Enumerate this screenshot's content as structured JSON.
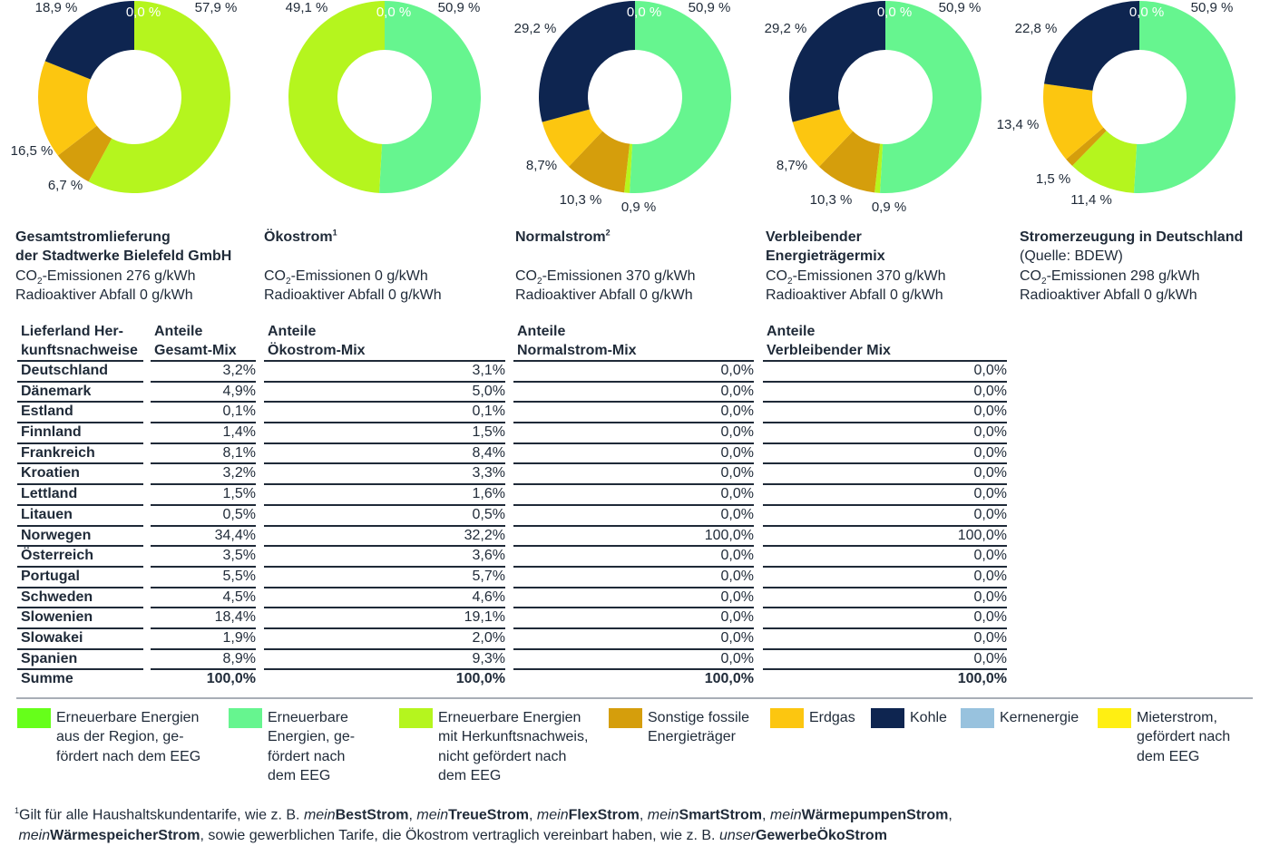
{
  "colors": {
    "ee_region": "#66ff1a",
    "ee_eeg": "#66f58f",
    "ee_hkn": "#b5f51e",
    "fossile": "#d59e0c",
    "erdgas": "#fcc610",
    "kohle": "#0e2550",
    "kernenergie": "#98c2de",
    "mieterstrom": "#ffef12"
  },
  "chart_data": [
    {
      "type": "pie",
      "slices": [
        {
          "name": "Erneuerbare Energien mit Herkunftsnachweis, nicht gefördert nach dem EEG",
          "value": 57.9,
          "label": "57,9 %",
          "color_key": "ee_hkn"
        },
        {
          "name": "Sonstige fossile Energieträger",
          "value": 6.7,
          "label": "6,7 %",
          "color_key": "fossile"
        },
        {
          "name": "Erdgas",
          "value": 16.5,
          "label": "16,5 %",
          "color_key": "erdgas"
        },
        {
          "name": "Kohle",
          "value": 18.9,
          "label": "18,9 %",
          "color_key": "kohle"
        },
        {
          "name": "Kernenergie",
          "value": 0.0,
          "label": "0,0 %",
          "color_key": "kernenergie"
        }
      ]
    },
    {
      "type": "pie",
      "slices": [
        {
          "name": "Erneuerbare Energien, gefördert nach dem EEG",
          "value": 50.9,
          "label": "50,9 %",
          "color_key": "ee_eeg"
        },
        {
          "name": "Erneuerbare Energien mit Herkunftsnachweis, nicht gefördert nach dem EEG",
          "value": 49.1,
          "label": "49,1 %",
          "color_key": "ee_hkn"
        },
        {
          "name": "Kernenergie",
          "value": 0.0,
          "label": "0,0 %",
          "color_key": "kernenergie"
        }
      ]
    },
    {
      "type": "pie",
      "slices": [
        {
          "name": "Erneuerbare Energien, gefördert nach dem EEG",
          "value": 50.9,
          "label": "50,9 %",
          "color_key": "ee_eeg"
        },
        {
          "name": "Erneuerbare Energien mit Herkunftsnachweis, nicht gefördert nach dem EEG",
          "value": 0.9,
          "label": "0,9 %",
          "color_key": "ee_hkn"
        },
        {
          "name": "Sonstige fossile Energieträger",
          "value": 10.3,
          "label": "10,3 %",
          "color_key": "fossile"
        },
        {
          "name": "Erdgas",
          "value": 8.7,
          "label": "8,7%",
          "color_key": "erdgas"
        },
        {
          "name": "Kohle",
          "value": 29.2,
          "label": "29,2 %",
          "color_key": "kohle"
        },
        {
          "name": "Kernenergie",
          "value": 0.0,
          "label": "0,0 %",
          "color_key": "kernenergie"
        }
      ]
    },
    {
      "type": "pie",
      "slices": [
        {
          "name": "Erneuerbare Energien, gefördert nach dem EEG",
          "value": 50.9,
          "label": "50,9 %",
          "color_key": "ee_eeg"
        },
        {
          "name": "Erneuerbare Energien mit Herkunftsnachweis, nicht gefördert nach dem EEG",
          "value": 0.9,
          "label": "0,9 %",
          "color_key": "ee_hkn"
        },
        {
          "name": "Sonstige fossile Energieträger",
          "value": 10.3,
          "label": "10,3 %",
          "color_key": "fossile"
        },
        {
          "name": "Erdgas",
          "value": 8.7,
          "label": "8,7%",
          "color_key": "erdgas"
        },
        {
          "name": "Kohle",
          "value": 29.2,
          "label": "29,2 %",
          "color_key": "kohle"
        },
        {
          "name": "Kernenergie",
          "value": 0.0,
          "label": "0,0 %",
          "color_key": "kernenergie"
        }
      ]
    },
    {
      "type": "pie",
      "slices": [
        {
          "name": "Erneuerbare Energien, gefördert nach dem EEG",
          "value": 50.9,
          "label": "50,9 %",
          "color_key": "ee_eeg"
        },
        {
          "name": "Erneuerbare Energien mit Herkunftsnachweis, nicht gefördert nach dem EEG",
          "value": 11.4,
          "label": "11,4 %",
          "color_key": "ee_hkn"
        },
        {
          "name": "Sonstige fossile Energieträger",
          "value": 1.5,
          "label": "1,5 %",
          "color_key": "fossile"
        },
        {
          "name": "Erdgas",
          "value": 13.4,
          "label": "13,4 %",
          "color_key": "erdgas"
        },
        {
          "name": "Kohle",
          "value": 22.8,
          "label": "22,8 %",
          "color_key": "kohle"
        },
        {
          "name": "Kernenergie",
          "value": 0.0,
          "label": "0,0 %",
          "color_key": "kernenergie"
        }
      ]
    }
  ],
  "info": [
    {
      "title1": "Gesamtstromlieferung",
      "title2": "der Stadtwerke Bielefeld GmbH",
      "sup": "",
      "sub_line": "",
      "co2_a": "CO",
      "co2_sub": "2",
      "co2_b": "-Emissionen 276 g/kWh",
      "waste": "Radioaktiver Abfall 0 g/kWh"
    },
    {
      "title1": "Ökostrom",
      "title2": "",
      "sup": "1",
      "sub_line": "",
      "co2_a": "CO",
      "co2_sub": "2",
      "co2_b": "-Emissionen 0 g/kWh",
      "waste": "Radioaktiver Abfall 0 g/kWh"
    },
    {
      "title1": "Normalstrom",
      "title2": "",
      "sup": "2",
      "sub_line": "",
      "co2_a": "CO",
      "co2_sub": "2",
      "co2_b": "-Emissionen 370 g/kWh",
      "waste": "Radioaktiver Abfall 0 g/kWh"
    },
    {
      "title1": "Verbleibender",
      "title2": "Energieträgermix",
      "sup": "",
      "sub_line": "",
      "co2_a": "CO",
      "co2_sub": "2",
      "co2_b": "-Emissionen 370 g/kWh",
      "waste": "Radioaktiver Abfall 0 g/kWh"
    },
    {
      "title1": "Stromerzeugung in Deutschland",
      "title2": "",
      "sup": "",
      "sub_line": "(Quelle: BDEW)",
      "co2_a": "CO",
      "co2_sub": "2",
      "co2_b": "-Emissionen 298 g/kWh",
      "waste": "Radioaktiver Abfall 0 g/kWh"
    }
  ],
  "table": {
    "headers": {
      "land": [
        "Lieferland Her-",
        "kunftsnachweise"
      ],
      "gesamt": [
        "Anteile",
        "Gesamt-Mix"
      ],
      "oeko": [
        "Anteile",
        "Ökostrom-Mix"
      ],
      "normal": [
        "Anteile",
        "Normalstrom-Mix"
      ],
      "verbleibend": [
        "Anteile",
        "Verbleibender Mix"
      ]
    },
    "countries": [
      "Deutschland",
      "Dänemark",
      "Estland",
      "Finnland",
      "Frankreich",
      "Kroatien",
      "Lettland",
      "Litauen",
      "Norwegen",
      "Österreich",
      "Portugal",
      "Schweden",
      "Slowenien",
      "Slowakei",
      "Spanien"
    ],
    "gesamt": [
      "3,2%",
      "4,9%",
      "0,1%",
      "1,4%",
      "8,1%",
      "3,2%",
      "1,5%",
      "0,5%",
      "34,4%",
      "3,5%",
      "5,5%",
      "4,5%",
      "18,4%",
      "1,9%",
      "8,9%"
    ],
    "oeko": [
      "3,1%",
      "5,0%",
      "0,1%",
      "1,5%",
      "8,4%",
      "3,3%",
      "1,6%",
      "0,5%",
      "32,2%",
      "3,6%",
      "5,7%",
      "4,6%",
      "19,1%",
      "2,0%",
      "9,3%"
    ],
    "normal": [
      "0,0%",
      "0,0%",
      "0,0%",
      "0,0%",
      "0,0%",
      "0,0%",
      "0,0%",
      "0,0%",
      "100,0%",
      "0,0%",
      "0,0%",
      "0,0%",
      "0,0%",
      "0,0%",
      "0,0%"
    ],
    "verbleibend": [
      "0,0%",
      "0,0%",
      "0,0%",
      "0,0%",
      "0,0%",
      "0,0%",
      "0,0%",
      "0,0%",
      "100,0%",
      "0,0%",
      "0,0%",
      "0,0%",
      "0,0%",
      "0,0%",
      "0,0%"
    ],
    "sum_label": "Summe",
    "sums": {
      "gesamt": "100,0%",
      "oeko": "100,0%",
      "normal": "100,0%",
      "verbleibend": "100,0%"
    }
  },
  "legend": [
    {
      "label": "Erneuerbare Energien\naus der Region, ge-\nfördert nach dem EEG",
      "color_key": "ee_region"
    },
    {
      "label": "Erneuerbare\nEnergien, ge-\nfördert nach\ndem EEG",
      "color_key": "ee_eeg"
    },
    {
      "label": "Erneuerbare Energien\nmit Herkunftsnachweis,\nnicht gefördert nach\ndem EEG",
      "color_key": "ee_hkn"
    },
    {
      "label": "Sonstige fossile\nEnergieträger",
      "color_key": "fossile"
    },
    {
      "label": "Erdgas",
      "color_key": "erdgas"
    },
    {
      "label": "Kohle",
      "color_key": "kohle"
    },
    {
      "label": "Kernenergie",
      "color_key": "kernenergie"
    },
    {
      "label": "Mieterstrom,\ngefördert nach\ndem EEG",
      "color_key": "mieterstrom"
    }
  ],
  "footnote": {
    "marker": "1",
    "l1_a": "Gilt für alle Haushaltskundentarife, wie z. B. ",
    "mein": "mein",
    "t1": "BestStrom",
    "t2": "TreueStrom",
    "t3": "FlexStrom",
    "t4": "SmartStrom",
    "t5": "WärmepumpenStrom",
    "t6": "WärmespeicherStrom",
    "sep": ", ",
    "l1_end": ",",
    "l2_b": ", sowie gewerblichen Tarife, die Ökostrom vertraglich vereinbart haben, wie z. B. ",
    "unser": "unser",
    "t7": "GewerbeÖkoStrom"
  }
}
